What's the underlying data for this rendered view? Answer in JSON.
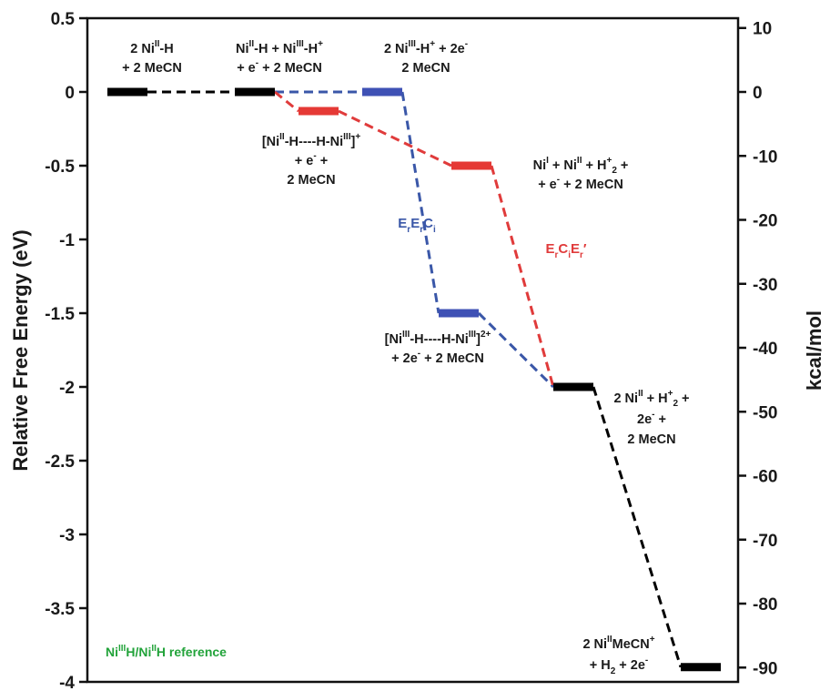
{
  "chart_data": {
    "type": "line",
    "ylabel_left": "Relative Free Energy (eV)",
    "ylabel_right": "kcal/mol",
    "ylim_left": [
      -4,
      0.5
    ],
    "ylim_right": [
      -92.24,
      11.53
    ],
    "left_ticks": [
      "0.5",
      "0",
      "-0.5",
      "-1",
      "-1.5",
      "-2",
      "-2.5",
      "-3",
      "-3.5",
      "-4"
    ],
    "right_ticks": [
      "10",
      "0",
      "-10",
      "-20",
      "-30",
      "-40",
      "-50",
      "-60",
      "-70",
      "-80",
      "-90"
    ],
    "levels": [
      {
        "id": "L1",
        "x": 1,
        "y": 0.0,
        "color": "#000000"
      },
      {
        "id": "L2",
        "x": 2,
        "y": 0.0,
        "color": "#000000"
      },
      {
        "id": "L3",
        "x": 2.5,
        "y": -0.13,
        "color": "#e53935"
      },
      {
        "id": "L4",
        "x": 3,
        "y": 0.0,
        "color": "#3f51b5"
      },
      {
        "id": "L5",
        "x": 3.7,
        "y": -0.5,
        "color": "#e53935"
      },
      {
        "id": "L6",
        "x": 3.6,
        "y": -1.5,
        "color": "#3f51b5"
      },
      {
        "id": "L7",
        "x": 4.5,
        "y": -2.0,
        "color": "#000000"
      },
      {
        "id": "L8",
        "x": 5.5,
        "y": -3.9,
        "color": "#000000"
      }
    ],
    "series": [
      {
        "name": "ErErCi",
        "color": "#3a57a8",
        "path": [
          "L2",
          "L4",
          "L6",
          "L7"
        ]
      },
      {
        "name": "ErCiEr'",
        "color": "#e03b3b",
        "path": [
          "L2",
          "L3",
          "L5",
          "L7"
        ]
      },
      {
        "name": "",
        "color": "#000000",
        "path": [
          "L1",
          "L2"
        ]
      },
      {
        "name": "",
        "color": "#000000",
        "path": [
          "L7",
          "L8"
        ]
      }
    ],
    "annotations": {
      "l1": {
        "a": "2 Ni",
        "a_sup": "II",
        "b": "-H",
        "line2": "+ 2 MeCN"
      },
      "l2": {
        "a": "Ni",
        "a_sup": "II",
        "b": "-H + Ni",
        "b_sup": "III",
        "c": "-H",
        "c_sup": "+",
        "line2a": "+ e",
        "line2a_sup": "-",
        "line2b": " + 2 MeCN"
      },
      "l4": {
        "a": "2 Ni",
        "a_sup": "III",
        "b": "-H",
        "b_sup": "+",
        "c": " + 2e",
        "c_sup": "-",
        "line2": "2 MeCN"
      },
      "l3": {
        "a": "[Ni",
        "a_sup": "II",
        "b": "-H----H-Ni",
        "b_sup": "III",
        "c": "]",
        "c_sup": "+",
        "line2a": "+ e",
        "line2a_sup": "-",
        "line2b": " +",
        "line3": "2 MeCN"
      },
      "l5": {
        "a": "Ni",
        "a_sup": "I",
        "b": " + Ni",
        "b_sup": "II",
        "c": " + H",
        "c_sup": "+",
        "c_sub": "2",
        "d": " +",
        "line2a": "+ e",
        "line2a_sup": "-",
        "line2b": " + 2 MeCN"
      },
      "l6": {
        "a": "[Ni",
        "a_sup": "III",
        "b": "-H----H-Ni",
        "b_sup": "III",
        "c": "]",
        "c_sup": "2+",
        "line2a": "+ 2e",
        "line2a_sup": "-",
        "line2b": " + 2 MeCN"
      },
      "l7": {
        "a": "2 Ni",
        "a_sup": "II",
        "b": " + H",
        "b_sup": "+",
        "b_sub": "2",
        "c": " +",
        "line2a": "2e",
        "line2a_sup": "-",
        "line2b": " +",
        "line3": "2 MeCN"
      },
      "l8": {
        "a": "2 Ni",
        "a_sup": "II",
        "b": "MeCN",
        "b_sup": "+",
        "line2a": "+ H",
        "line2a_sub": "2",
        "line2b": " + 2e",
        "line2b_sup": "-"
      },
      "blue_label": {
        "a": "E",
        "a_sub": "r",
        "b": "E",
        "b_sub": "r",
        "c": "C",
        "c_sub": "i"
      },
      "red_label": {
        "a": "E",
        "a_sub": "r",
        "b": "C",
        "b_sub": "i",
        "c": "E",
        "c_sub": "r",
        "d": "′"
      },
      "reference": {
        "a": "Ni",
        "a_sup": "III",
        "b": "H/Ni",
        "b_sup": "II",
        "c": "H reference"
      }
    }
  }
}
